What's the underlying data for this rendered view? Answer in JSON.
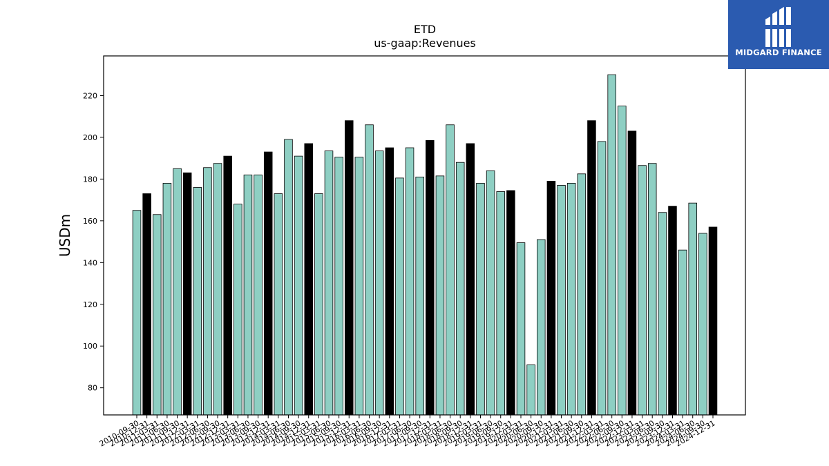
{
  "brand": {
    "name": "MIDGARD FINANCE",
    "background": "#2b5bb0",
    "icon": "midgard-logo-icon"
  },
  "chart_data": {
    "type": "bar",
    "title": "ETD",
    "subtitle": "us-gaap:Revenues",
    "xlabel": "",
    "ylabel": "USDm",
    "ylim": [
      67,
      239
    ],
    "yticks": [
      80,
      100,
      120,
      140,
      160,
      180,
      200,
      220
    ],
    "grid": false,
    "colors": {
      "quarter": "#8ecfc3",
      "fiscal_year_end": "#000000",
      "edge": "#000000"
    },
    "categories": [
      "2010-09-30",
      "2010-12-31",
      "2011-03-31",
      "2011-06-30",
      "2011-09-30",
      "2011-12-31",
      "2012-03-31",
      "2012-06-30",
      "2012-09-30",
      "2012-12-31",
      "2013-03-31",
      "2013-06-30",
      "2013-09-30",
      "2013-12-31",
      "2014-03-31",
      "2014-06-30",
      "2014-09-30",
      "2014-12-31",
      "2015-03-31",
      "2015-06-30",
      "2015-09-30",
      "2015-12-31",
      "2016-03-31",
      "2016-06-30",
      "2016-09-30",
      "2016-12-31",
      "2017-03-31",
      "2017-06-30",
      "2017-09-30",
      "2017-12-31",
      "2018-03-31",
      "2018-06-30",
      "2018-09-30",
      "2018-12-31",
      "2019-03-31",
      "2019-06-30",
      "2019-09-30",
      "2019-12-31",
      "2020-03-31",
      "2020-06-30",
      "2020-09-30",
      "2020-12-31",
      "2021-03-31",
      "2021-06-30",
      "2021-09-30",
      "2021-12-31",
      "2022-03-31",
      "2022-06-30",
      "2022-09-30",
      "2022-12-31",
      "2023-03-31",
      "2023-06-30",
      "2023-09-30",
      "2023-12-31",
      "2024-03-31",
      "2024-06-30",
      "2024-09-30",
      "2024-12-31"
    ],
    "values": [
      165,
      173,
      163,
      178,
      185,
      183,
      176,
      185.5,
      187.5,
      191,
      168,
      182,
      182,
      193,
      173,
      199,
      191,
      197,
      173,
      193.5,
      190.5,
      208,
      190.5,
      206,
      193.5,
      195,
      180.5,
      195,
      181,
      198.5,
      181.5,
      206,
      188,
      197,
      178,
      184,
      174,
      174.5,
      149.5,
      91,
      151,
      179,
      177,
      178,
      182.5,
      208,
      198,
      230,
      215,
      203,
      186.5,
      187.5,
      164,
      167,
      146,
      168.5,
      154,
      157
    ],
    "highlight": [
      false,
      true,
      false,
      false,
      false,
      true,
      false,
      false,
      false,
      true,
      false,
      false,
      false,
      true,
      false,
      false,
      false,
      true,
      false,
      false,
      false,
      true,
      false,
      false,
      false,
      true,
      false,
      false,
      false,
      true,
      false,
      false,
      false,
      true,
      false,
      false,
      false,
      true,
      false,
      false,
      false,
      true,
      false,
      false,
      false,
      true,
      false,
      false,
      false,
      true,
      false,
      false,
      false,
      true,
      false,
      false,
      false,
      true
    ]
  }
}
